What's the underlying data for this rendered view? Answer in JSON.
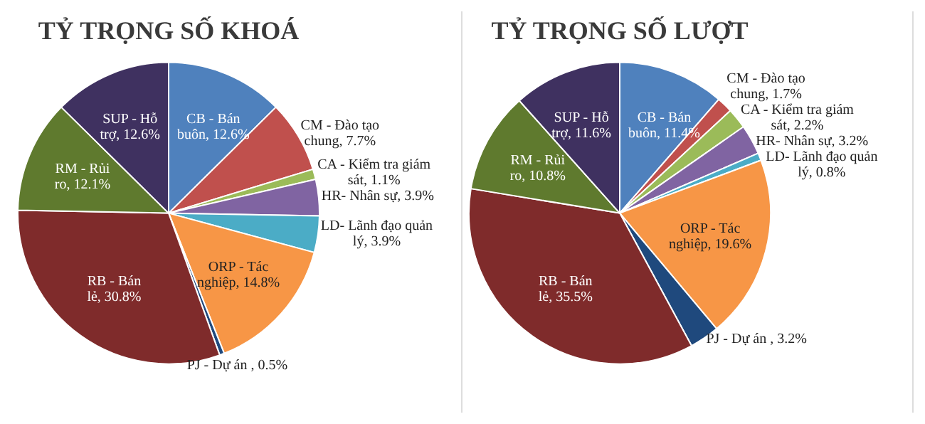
{
  "chart_data": [
    {
      "type": "pie",
      "title": "TỶ TRỌNG SỐ KHOÁ",
      "categories": [
        "CB - Bán buôn",
        "CM - Đào tạo chung",
        "CA - Kiểm tra giám sát",
        "HR- Nhân sự",
        "LD- Lãnh đạo quản lý",
        "ORP - Tác nghiệp",
        "PJ - Dự án ",
        "RB - Bán lẻ",
        "RM - Rủi ro",
        "SUP - Hỗ trợ"
      ],
      "values": [
        12.6,
        7.7,
        1.1,
        3.9,
        3.9,
        14.8,
        0.5,
        30.8,
        12.1,
        12.6
      ],
      "value_labels": [
        "12.6%",
        "7.7%",
        "1.1%",
        "3.9%",
        "3.9%",
        "14.8%",
        "0.5%",
        "30.8%",
        "12.1%",
        "12.6%"
      ],
      "colors": [
        "#4f81bd",
        "#c0504d",
        "#9bbb59",
        "#8064a2",
        "#4bacc6",
        "#f79646",
        "#1f497d",
        "#7f2b2b",
        "#5f7a2e",
        "#3f3160"
      ]
    },
    {
      "type": "pie",
      "title": "TỶ TRỌNG SỐ LƯỢT",
      "categories": [
        "CB - Bán buôn",
        "CM - Đào tạo chung",
        "CA - Kiểm tra giám sát",
        "HR- Nhân sự",
        "LD- Lãnh đạo quản lý",
        "ORP - Tác nghiệp",
        "PJ - Dự án ",
        "RB - Bán lẻ",
        "RM - Rủi ro",
        "SUP - Hỗ trợ"
      ],
      "values": [
        11.4,
        1.7,
        2.2,
        3.2,
        0.8,
        19.6,
        3.2,
        35.5,
        10.8,
        11.6
      ],
      "value_labels": [
        "11.4%",
        "1.7%",
        "2.2%",
        "3.2%",
        "0.8%",
        "19.6%",
        "3.2%",
        "35.5%",
        "10.8%",
        "11.6%"
      ],
      "colors": [
        "#4f81bd",
        "#c0504d",
        "#9bbb59",
        "#8064a2",
        "#4bacc6",
        "#f79646",
        "#1f497d",
        "#7f2b2b",
        "#5f7a2e",
        "#3f3160"
      ]
    }
  ]
}
